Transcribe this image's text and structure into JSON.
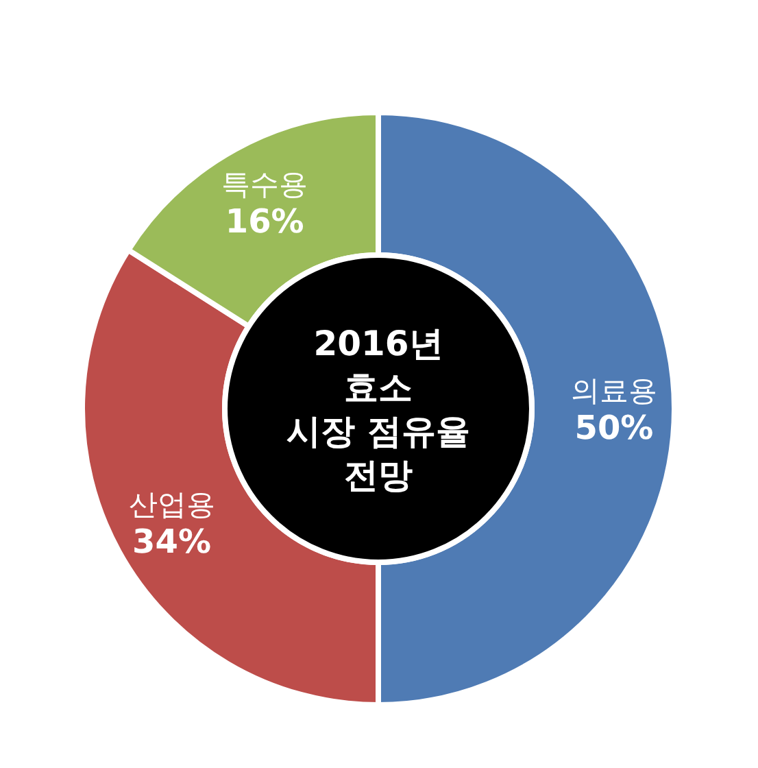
{
  "chart_data": {
    "type": "donut",
    "title": "2016년\n효소\n시장 점유율\n전망",
    "categories": [
      "의료용",
      "산업용",
      "특수용"
    ],
    "values": [
      50,
      34,
      16
    ],
    "colors": [
      "#4f7bb4",
      "#bd4d4a",
      "#9bbb59"
    ],
    "value_labels": [
      "50%",
      "34%",
      "16%"
    ]
  }
}
